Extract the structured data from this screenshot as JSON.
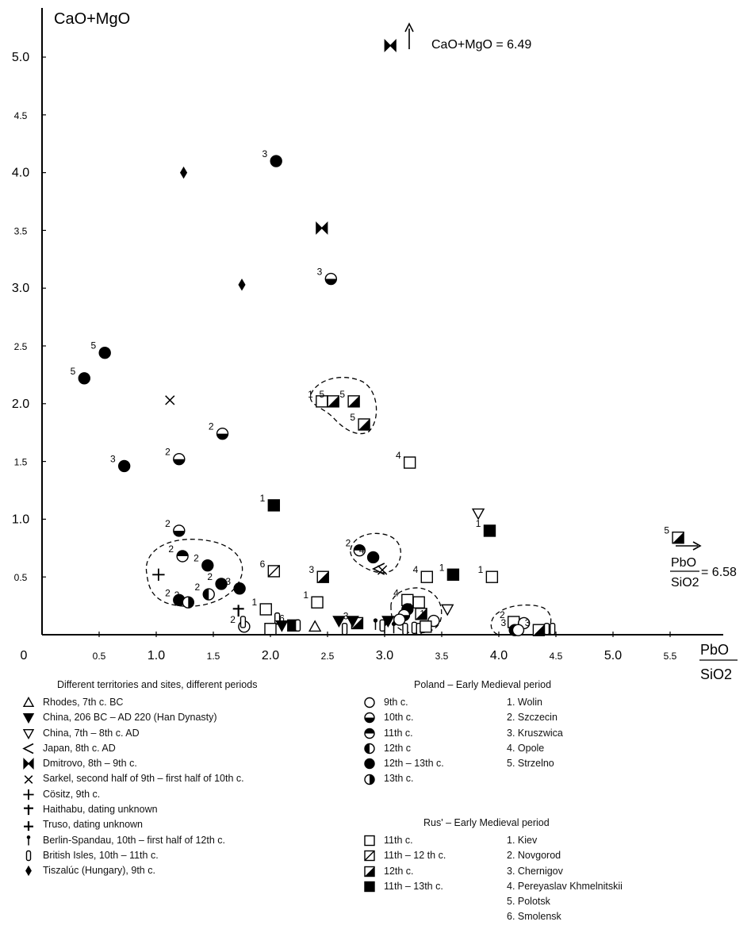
{
  "chart_data": {
    "type": "scatter",
    "ylabel": "CaO+MgO",
    "xlabel_num": "PbO",
    "xlabel_den": "SiO2",
    "xlim": [
      0,
      6.0
    ],
    "ylim": [
      0,
      5.4
    ],
    "xticks": [
      {
        "v": 0,
        "t": "0"
      },
      {
        "v": 0.5,
        "t": "0.5"
      },
      {
        "v": 1.0,
        "t": "1.0"
      },
      {
        "v": 1.5,
        "t": "1.5"
      },
      {
        "v": 2.0,
        "t": "2.0"
      },
      {
        "v": 2.5,
        "t": "2.5"
      },
      {
        "v": 3.0,
        "t": "3.0"
      },
      {
        "v": 3.5,
        "t": "3.5"
      },
      {
        "v": 4.0,
        "t": "4.0"
      },
      {
        "v": 4.5,
        "t": "4.5"
      },
      {
        "v": 5.0,
        "t": "5.0"
      },
      {
        "v": 5.5,
        "t": "5.5"
      }
    ],
    "yticks": [
      {
        "v": 0.5,
        "t": "0.5"
      },
      {
        "v": 1.0,
        "t": "1.0"
      },
      {
        "v": 1.5,
        "t": "1.5"
      },
      {
        "v": 2.0,
        "t": "2.0"
      },
      {
        "v": 2.5,
        "t": "2.5"
      },
      {
        "v": 3.0,
        "t": "3.0"
      },
      {
        "v": 3.5,
        "t": "3.5"
      },
      {
        "v": 4.0,
        "t": "4.0"
      },
      {
        "v": 4.5,
        "t": "4.5"
      },
      {
        "v": 5.0,
        "t": "5.0"
      }
    ],
    "annotations": {
      "top_value": "CaO+MgO = 6.49",
      "right_value": "= 6.58",
      "right_num": "PbO",
      "right_den": "SiO2"
    },
    "points": [
      {
        "s": "diamond",
        "x": 1.24,
        "y": 4.0
      },
      {
        "s": "diamond",
        "x": 1.75,
        "y": 3.03
      },
      {
        "s": "circle-full",
        "x": 2.05,
        "y": 4.1,
        "n": "3"
      },
      {
        "s": "bowtie",
        "x": 2.45,
        "y": 3.52
      },
      {
        "s": "bowtie",
        "x": 3.05,
        "y": 5.1
      },
      {
        "s": "circle-half-bottom",
        "x": 2.53,
        "y": 3.08,
        "n": "3"
      },
      {
        "s": "circle-full",
        "x": 0.55,
        "y": 2.44,
        "n": "5"
      },
      {
        "s": "circle-full",
        "x": 0.37,
        "y": 2.22,
        "n": "5"
      },
      {
        "s": "cross-x",
        "x": 1.12,
        "y": 2.03
      },
      {
        "s": "circle-half-bottom",
        "x": 1.58,
        "y": 1.74,
        "n": "2"
      },
      {
        "s": "circle-half-bottom",
        "x": 1.2,
        "y": 1.52,
        "n": "2"
      },
      {
        "s": "circle-full",
        "x": 0.72,
        "y": 1.46,
        "n": "3"
      },
      {
        "s": "circle-half-bottom",
        "x": 1.2,
        "y": 0.9,
        "n": "2"
      },
      {
        "s": "circle-half-top",
        "x": 1.23,
        "y": 0.68,
        "n": "2"
      },
      {
        "s": "circle-full",
        "x": 1.45,
        "y": 0.6,
        "n": "2"
      },
      {
        "s": "circle-full",
        "x": 1.57,
        "y": 0.44,
        "n": "2"
      },
      {
        "s": "circle-full",
        "x": 1.73,
        "y": 0.4,
        "n": "3"
      },
      {
        "s": "circle-half-left",
        "x": 1.46,
        "y": 0.35,
        "n": "2"
      },
      {
        "s": "circle-full",
        "x": 1.2,
        "y": 0.3,
        "n": "2"
      },
      {
        "s": "circle-half-right",
        "x": 1.28,
        "y": 0.28,
        "n": "2"
      },
      {
        "s": "plus",
        "x": 1.02,
        "y": 0.52
      },
      {
        "s": "plus-short",
        "x": 1.72,
        "y": 0.21
      },
      {
        "s": "triangle-up",
        "x": 2.39,
        "y": 0.07
      },
      {
        "s": "circle-open",
        "x": 1.77,
        "y": 0.07,
        "n": "2"
      },
      {
        "s": "rounded-rect",
        "x": 1.76,
        "y": 0.11
      },
      {
        "s": "square-open",
        "x": 1.96,
        "y": 0.22,
        "n": "1"
      },
      {
        "s": "rounded-rect",
        "x": 2.06,
        "y": 0.14
      },
      {
        "s": "triangle-down",
        "x": 2.1,
        "y": 0.08
      },
      {
        "s": "square-open",
        "x": 2.0,
        "y": 0.05
      },
      {
        "s": "square-full",
        "x": 2.2,
        "y": 0.08,
        "n": "6"
      },
      {
        "s": "rounded-rect",
        "x": 2.24,
        "y": 0.08
      },
      {
        "s": "square-open",
        "x": 2.41,
        "y": 0.28,
        "n": "1"
      },
      {
        "s": "square-diag",
        "x": 2.03,
        "y": 0.55,
        "n": "6"
      },
      {
        "s": "square-half",
        "x": 2.46,
        "y": 0.5,
        "n": "3"
      },
      {
        "s": "square-full",
        "x": 2.03,
        "y": 1.12,
        "n": "1"
      },
      {
        "s": "triangle-down",
        "x": 2.6,
        "y": 0.12
      },
      {
        "s": "rounded-rect",
        "x": 2.65,
        "y": 0.05
      },
      {
        "s": "square-half",
        "x": 2.76,
        "y": 0.1,
        "n": "3"
      },
      {
        "s": "triangle-down",
        "x": 2.72,
        "y": 0.12
      },
      {
        "s": "square-open",
        "x": 2.45,
        "y": 2.02,
        "n": "1"
      },
      {
        "s": "square-half",
        "x": 2.55,
        "y": 2.02,
        "n": "5"
      },
      {
        "s": "square-half",
        "x": 2.73,
        "y": 2.02,
        "n": "5"
      },
      {
        "s": "square-half",
        "x": 2.82,
        "y": 1.82,
        "n": "5"
      },
      {
        "s": "square-open",
        "x": 3.22,
        "y": 1.49,
        "n": "4"
      },
      {
        "s": "circle-half-top",
        "x": 2.78,
        "y": 0.73,
        "n": "2"
      },
      {
        "s": "circle-full",
        "x": 2.9,
        "y": 0.67,
        "n": "4"
      },
      {
        "s": "lt-open",
        "x": 2.95,
        "y": 0.57
      },
      {
        "s": "cross-x",
        "x": 2.98,
        "y": 0.56
      },
      {
        "s": "square-open",
        "x": 3.37,
        "y": 0.5,
        "n": "4"
      },
      {
        "s": "square-full",
        "x": 3.6,
        "y": 0.52,
        "n": "1"
      },
      {
        "s": "triangle-down",
        "x": 3.03,
        "y": 0.12
      },
      {
        "s": "pin",
        "x": 2.92,
        "y": 0.09
      },
      {
        "s": "pin",
        "x": 3.0,
        "y": 0.06
      },
      {
        "s": "pin",
        "x": 3.08,
        "y": 0.06
      },
      {
        "s": "rounded-rect",
        "x": 2.98,
        "y": 0.08
      },
      {
        "s": "rounded-rect",
        "x": 3.18,
        "y": 0.05
      },
      {
        "s": "rounded-rect",
        "x": 3.26,
        "y": 0.06
      },
      {
        "s": "rounded-rect",
        "x": 3.3,
        "y": 0.05
      },
      {
        "s": "square-open",
        "x": 3.2,
        "y": 0.3,
        "n": "4"
      },
      {
        "s": "square-open",
        "x": 3.3,
        "y": 0.28
      },
      {
        "s": "circle-full",
        "x": 3.2,
        "y": 0.22
      },
      {
        "s": "circle-half-bottom",
        "x": 3.17,
        "y": 0.17
      },
      {
        "s": "circle-open",
        "x": 3.13,
        "y": 0.13
      },
      {
        "s": "square-half",
        "x": 3.32,
        "y": 0.18,
        "n": "3"
      },
      {
        "s": "circle-open",
        "x": 3.43,
        "y": 0.12,
        "n": "1"
      },
      {
        "s": "square-open",
        "x": 3.36,
        "y": 0.07
      },
      {
        "s": "triangle-down-open",
        "x": 3.55,
        "y": 0.22
      },
      {
        "s": "triangle-down-open",
        "x": 3.82,
        "y": 1.05
      },
      {
        "s": "square-full",
        "x": 3.92,
        "y": 0.9,
        "n": "1"
      },
      {
        "s": "square-open",
        "x": 3.94,
        "y": 0.5,
        "n": "1"
      },
      {
        "s": "square-open",
        "x": 4.13,
        "y": 0.11,
        "n": "2"
      },
      {
        "s": "circle-open",
        "x": 4.22,
        "y": 0.1
      },
      {
        "s": "circle-full",
        "x": 4.14,
        "y": 0.04,
        "n": "3"
      },
      {
        "s": "circle-open",
        "x": 4.17,
        "y": 0.04
      },
      {
        "s": "square-half",
        "x": 4.35,
        "y": 0.04,
        "n": "3"
      },
      {
        "s": "rounded-rect",
        "x": 4.42,
        "y": 0.05
      },
      {
        "s": "rounded-rect",
        "x": 4.47,
        "y": 0.05
      },
      {
        "s": "square-half",
        "x": 5.57,
        "y": 0.84,
        "n": "5"
      }
    ]
  },
  "legend": {
    "left_title": "Different territories and sites, different periods",
    "left_items": [
      {
        "sym": "triangle-up",
        "label": "Rhodes, 7th c. BC"
      },
      {
        "sym": "triangle-down",
        "label": "China, 206 BC – AD 220 (Han Dynasty)"
      },
      {
        "sym": "triangle-down-open",
        "label": "China, 7th – 8th c. AD"
      },
      {
        "sym": "lt-open",
        "label": "Japan, 8th c. AD"
      },
      {
        "sym": "bowtie",
        "label": "Dmitrovo, 8th – 9th c."
      },
      {
        "sym": "cross-x",
        "label": "Sarkel, second half of 9th – first half of 10th c."
      },
      {
        "sym": "plus",
        "label": "Cösitz, 9th c."
      },
      {
        "sym": "plus-short",
        "label": "Haithabu, dating unknown"
      },
      {
        "sym": "truso",
        "label": "Truso, dating unknown"
      },
      {
        "sym": "pin",
        "label": "Berlin-Spandau, 10th – first half of 12th c."
      },
      {
        "sym": "rounded-rect",
        "label": "British Isles, 10th – 11th c."
      },
      {
        "sym": "diamond",
        "label": "Tiszalúc (Hungary), 9th c."
      }
    ],
    "poland_title": "Poland – Early Medieval period",
    "poland_items": [
      {
        "sym": "circle-open",
        "label": "9th c."
      },
      {
        "sym": "circle-half-bottom",
        "label": "10th c."
      },
      {
        "sym": "circle-half-top",
        "label": "11th c."
      },
      {
        "sym": "circle-half-left",
        "label": "12th c"
      },
      {
        "sym": "circle-full",
        "label": "12th – 13th c."
      },
      {
        "sym": "circle-half-right",
        "label": "13th c."
      }
    ],
    "poland_sites": [
      "1. Wolin",
      "2. Szczecin",
      "3. Kruszwica",
      "4. Opole",
      "5. Strzelno"
    ],
    "rus_title": "Rus' – Early Medieval period",
    "rus_items": [
      {
        "sym": "square-open",
        "label": "11th c."
      },
      {
        "sym": "square-diag",
        "label": "11th – 12 th c."
      },
      {
        "sym": "square-half",
        "label": "12th c."
      },
      {
        "sym": "square-full",
        "label": "11th – 13th c."
      }
    ],
    "rus_sites": [
      "1. Kiev",
      "2. Novgorod",
      "3. Chernigov",
      "4. Pereyaslav Khmelnitskii",
      "5. Polotsk",
      "6. Smolensk"
    ]
  }
}
